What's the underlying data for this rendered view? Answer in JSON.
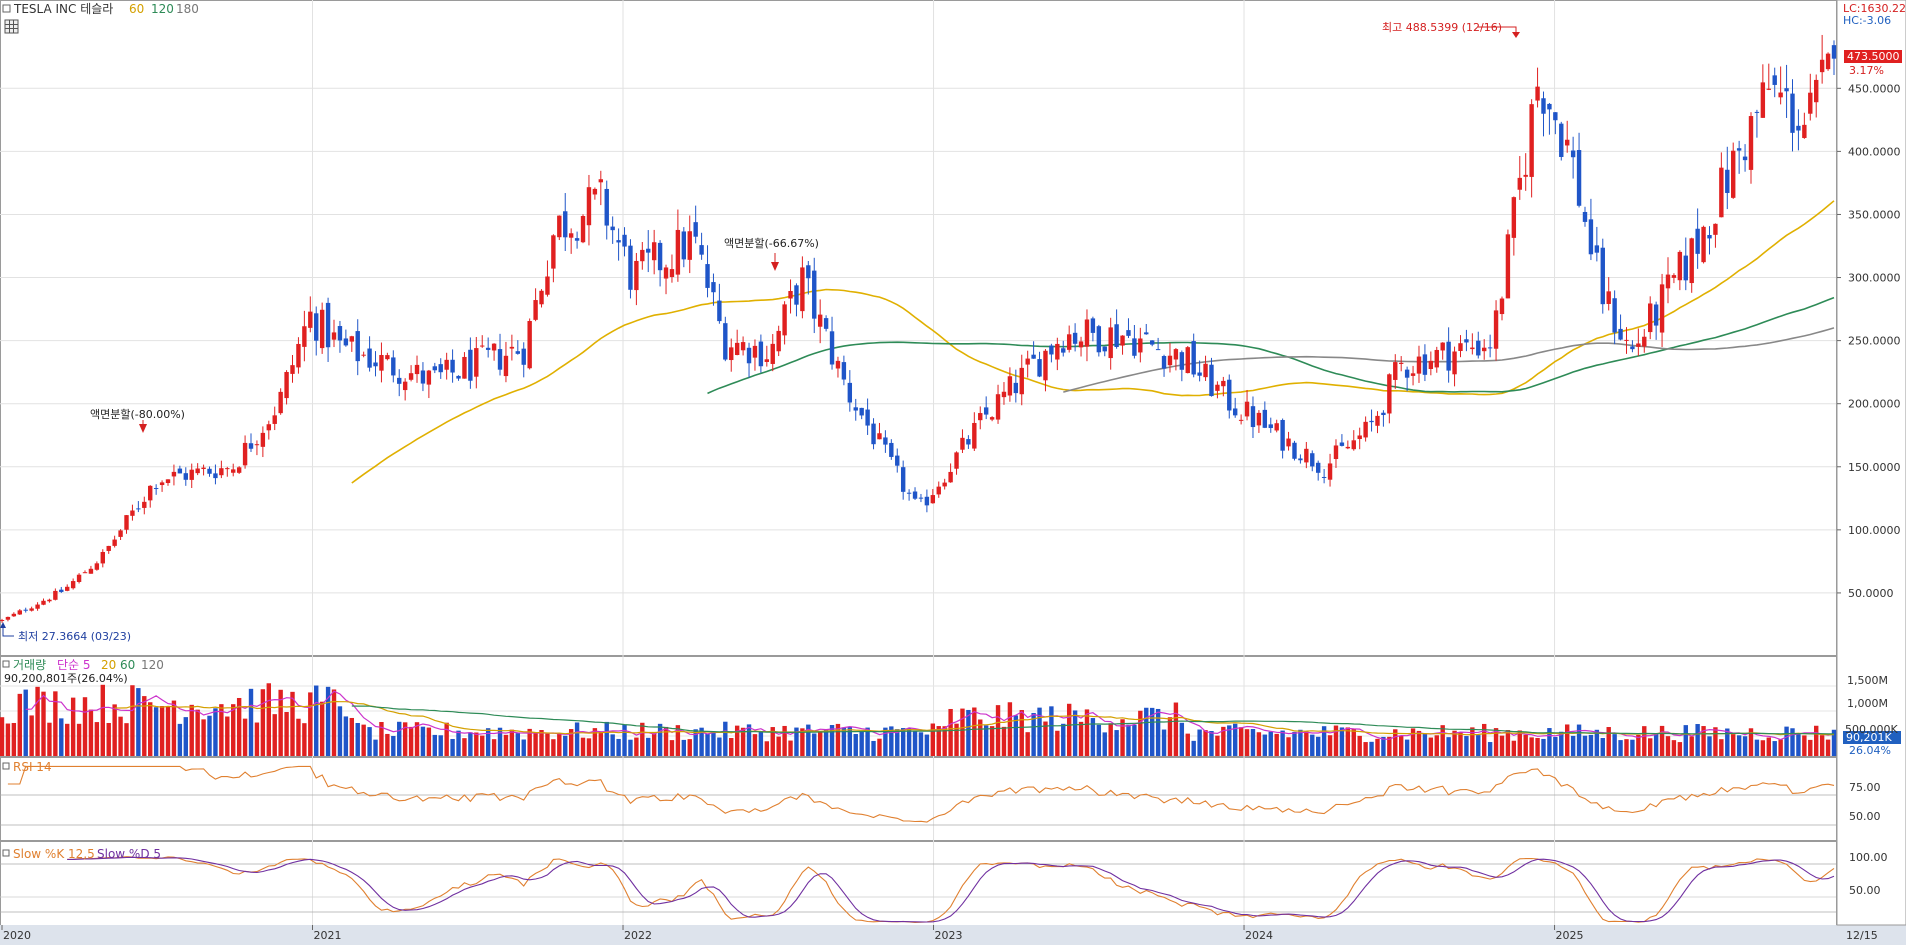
{
  "header": {
    "ticker": "TESLA INC 테슬라",
    "ma": [
      {
        "label": "60",
        "color": "#d4a000"
      },
      {
        "label": "120",
        "color": "#2e8b57"
      },
      {
        "label": "180",
        "color": "#777777"
      }
    ]
  },
  "top_right": {
    "lc": "LC:1630.22",
    "hc": "HC:-3.06"
  },
  "price": {
    "current_label": "473.5000",
    "current_value": 473.5,
    "change_label": "3.17%",
    "yticks": [
      50000,
      100000,
      150000,
      200000,
      250000,
      300000,
      350000,
      400000,
      450000
    ],
    "yticks_labels": [
      "50.0000",
      "100.0000",
      "150.0000",
      "200.0000",
      "250.0000",
      "300.0000",
      "350.0000",
      "400.0000",
      "450.0000"
    ],
    "ylim": [
      0,
      520
    ],
    "annotations": {
      "low": "최저 27.3664 (03/23)",
      "high": "최고 488.5399 (12/16)",
      "split1": "액면분할(-80.00%)",
      "split2": "액면분할(-66.67%)"
    }
  },
  "volume": {
    "legend_name": "거래량",
    "legend_ma": [
      "단순 5",
      "20",
      "60",
      "120"
    ],
    "legend_colors": [
      "#cc33cc",
      "#d4a000",
      "#2e8b57",
      "#777777"
    ],
    "info": "90,200,801주(26.04%)",
    "yticks_labels": [
      "1,500M",
      "1,000M",
      "500,000K"
    ],
    "current_label": "90,201K",
    "current_pct": "26.04%"
  },
  "rsi": {
    "legend": "RSI 14",
    "yticks_labels": [
      "75.00",
      "50.00"
    ]
  },
  "stoch": {
    "legend_k": "Slow %K 12,5",
    "legend_d": "Slow %D 5",
    "yticks_labels": [
      "100.00",
      "50.00"
    ]
  },
  "xaxis": {
    "labels": [
      "2020",
      "2021",
      "2022",
      "2023",
      "2024",
      "2025",
      "12/15"
    ]
  },
  "chart_data": {
    "type": "candlestick",
    "title": "TESLA INC 테슬라",
    "interval": "weekly",
    "x_range": [
      "2020-01",
      "2025-12"
    ],
    "ylim": [
      0,
      520
    ],
    "close_anchors": [
      {
        "t": 0.0,
        "v": 28
      },
      {
        "t": 0.2,
        "v": 52
      },
      {
        "t": 0.33,
        "v": 80
      },
      {
        "t": 0.5,
        "v": 140
      },
      {
        "t": 0.75,
        "v": 150
      },
      {
        "t": 0.9,
        "v": 200
      },
      {
        "t": 1.0,
        "v": 270
      },
      {
        "t": 1.1,
        "v": 245
      },
      {
        "t": 1.4,
        "v": 218
      },
      {
        "t": 1.7,
        "v": 245
      },
      {
        "t": 1.8,
        "v": 340
      },
      {
        "t": 1.95,
        "v": 360
      },
      {
        "t": 2.05,
        "v": 300
      },
      {
        "t": 2.25,
        "v": 330
      },
      {
        "t": 2.35,
        "v": 250
      },
      {
        "t": 2.5,
        "v": 240
      },
      {
        "t": 2.6,
        "v": 300
      },
      {
        "t": 2.75,
        "v": 210
      },
      {
        "t": 2.98,
        "v": 115
      },
      {
        "t": 3.2,
        "v": 190
      },
      {
        "t": 3.45,
        "v": 255
      },
      {
        "t": 3.65,
        "v": 255
      },
      {
        "t": 3.85,
        "v": 235
      },
      {
        "t": 4.0,
        "v": 200
      },
      {
        "t": 4.3,
        "v": 150
      },
      {
        "t": 4.45,
        "v": 180
      },
      {
        "t": 4.55,
        "v": 230
      },
      {
        "t": 4.85,
        "v": 250
      },
      {
        "t": 5.0,
        "v": 460
      },
      {
        "t": 5.1,
        "v": 400
      },
      {
        "t": 5.2,
        "v": 290
      },
      {
        "t": 5.3,
        "v": 240
      },
      {
        "t": 5.5,
        "v": 320
      },
      {
        "t": 5.75,
        "v": 450
      },
      {
        "t": 5.87,
        "v": 420
      },
      {
        "t": 5.96,
        "v": 473.5
      }
    ]
  }
}
